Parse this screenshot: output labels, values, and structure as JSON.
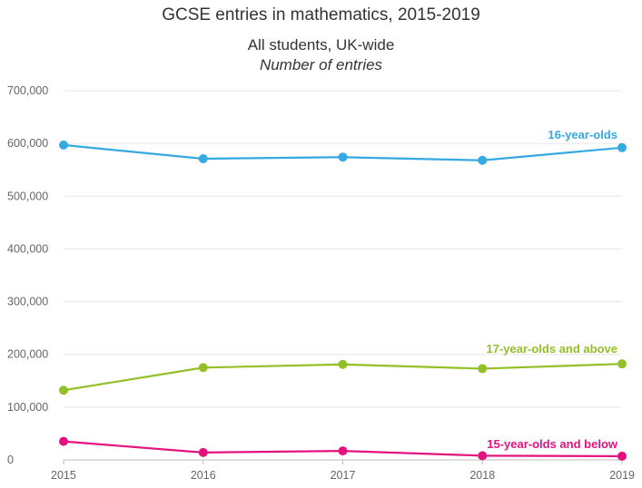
{
  "chart_data": {
    "type": "line",
    "title": "GCSE entries in mathematics, 2015-2019",
    "subtitle": "All students, UK-wide",
    "subtitle2": "Number of entries",
    "x": [
      2015,
      2016,
      2017,
      2018,
      2019
    ],
    "xticks": [
      "2015",
      "2016",
      "2017",
      "2018",
      "2019"
    ],
    "yticks": [
      "0",
      "100,000",
      "200,000",
      "300,000",
      "400,000",
      "500,000",
      "600,000",
      "700,000"
    ],
    "ytick_values": [
      0,
      100000,
      200000,
      300000,
      400000,
      500000,
      600000,
      700000
    ],
    "ylim": [
      0,
      700000
    ],
    "grid": true,
    "series": [
      {
        "name": "16-year-olds",
        "color": "#35a9e1",
        "values": [
          597000,
          571000,
          574000,
          568000,
          592000
        ]
      },
      {
        "name": "17-year-olds and above",
        "color": "#93bf27",
        "values": [
          132000,
          175000,
          181000,
          173000,
          182000
        ]
      },
      {
        "name": "15-year-olds and below",
        "color": "#e5117f",
        "values": [
          35000,
          14000,
          17000,
          8000,
          7000
        ]
      }
    ]
  }
}
